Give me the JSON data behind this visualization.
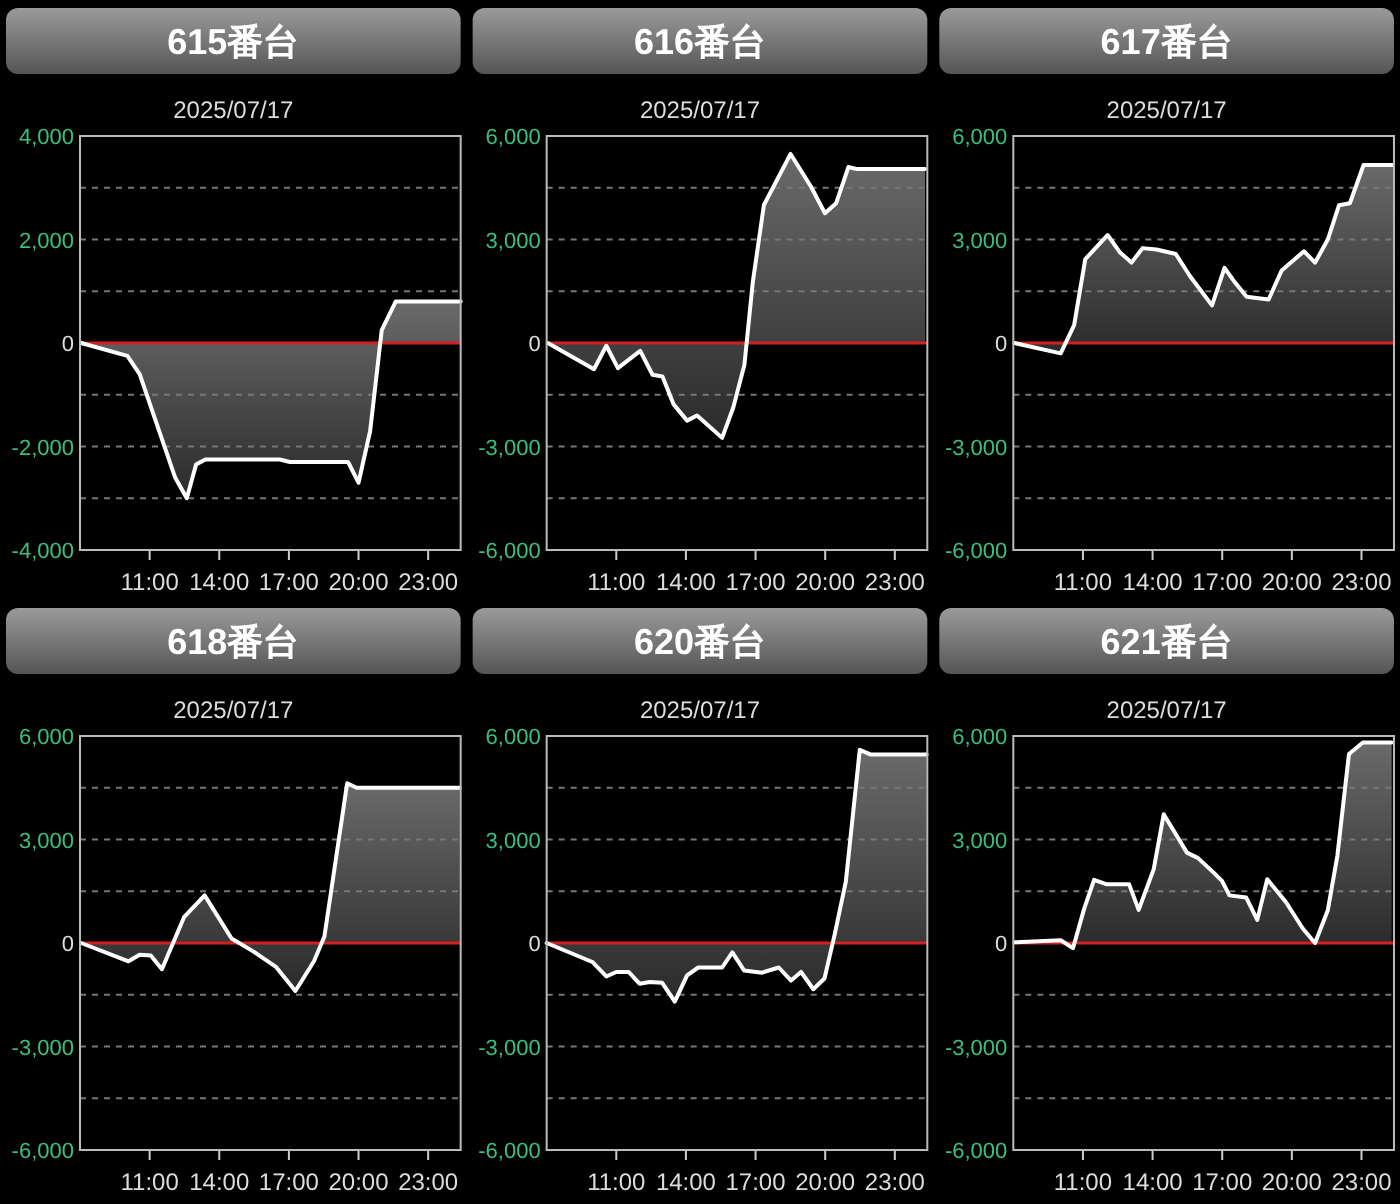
{
  "chart_data": [
    {
      "type": "area",
      "title": "615番台",
      "subtitle": "2025/07/17",
      "color": "#ffffff",
      "grid": "y",
      "xlim": [
        8,
        24.4
      ],
      "ylim": [
        -4000,
        4000
      ],
      "xticks": [
        {
          "value": 11,
          "label": "11:00"
        },
        {
          "value": 14,
          "label": "14:00"
        },
        {
          "value": 17,
          "label": "17:00"
        },
        {
          "value": 20,
          "label": "20:00"
        },
        {
          "value": 23,
          "label": "23:00"
        }
      ],
      "yticks": [
        {
          "value": -4000,
          "label": "-4,000"
        },
        {
          "value": -3000,
          "label": null
        },
        {
          "value": -2000,
          "label": "-2,000"
        },
        {
          "value": -1000,
          "label": null
        },
        {
          "value": 0,
          "label": "0"
        },
        {
          "value": 1000,
          "label": null
        },
        {
          "value": 2000,
          "label": "2,000"
        },
        {
          "value": 3000,
          "label": null
        },
        {
          "value": 4000,
          "label": "4,000"
        }
      ],
      "ref_lines": [
        {
          "axis": "y",
          "value": 0,
          "color": "#d42020"
        }
      ],
      "x": [
        8.05,
        10.04,
        10.57,
        12.1,
        12.6,
        13.0,
        13.4,
        16.6,
        17.05,
        19.55,
        20.0,
        20.5,
        21.0,
        21.6,
        24.4
      ],
      "values": [
        0,
        -250,
        -600,
        -2600,
        -3000,
        -2350,
        -2250,
        -2250,
        -2300,
        -2300,
        -2700,
        -1700,
        250,
        800,
        800
      ]
    },
    {
      "type": "area",
      "title": "616番台",
      "subtitle": "2025/07/17",
      "color": "#ffffff",
      "grid": "y",
      "xlim": [
        8,
        24.4
      ],
      "ylim": [
        -6000,
        6000
      ],
      "xticks": [
        {
          "value": 11,
          "label": "11:00"
        },
        {
          "value": 14,
          "label": "14:00"
        },
        {
          "value": 17,
          "label": "17:00"
        },
        {
          "value": 20,
          "label": "20:00"
        },
        {
          "value": 23,
          "label": "23:00"
        }
      ],
      "yticks": [
        {
          "value": -6000,
          "label": "-6,000"
        },
        {
          "value": -4500,
          "label": null
        },
        {
          "value": -3000,
          "label": "-3,000"
        },
        {
          "value": -1500,
          "label": null
        },
        {
          "value": 0,
          "label": "0"
        },
        {
          "value": 1500,
          "label": null
        },
        {
          "value": 3000,
          "label": "3,000"
        },
        {
          "value": 4500,
          "label": null
        },
        {
          "value": 6000,
          "label": "6,000"
        }
      ],
      "ref_lines": [
        {
          "axis": "y",
          "value": 0,
          "color": "#d42020"
        }
      ],
      "x": [
        8.05,
        10.04,
        10.57,
        11.07,
        12.03,
        12.56,
        12.99,
        13.47,
        14.05,
        14.48,
        15.56,
        16.04,
        16.52,
        16.88,
        17.36,
        18.51,
        19.39,
        19.99,
        20.47,
        21.0,
        21.38,
        24.3
      ],
      "values": [
        0,
        -760,
        -80,
        -730,
        -230,
        -920,
        -970,
        -1780,
        -2250,
        -2100,
        -2750,
        -1870,
        -630,
        1760,
        4000,
        5480,
        4530,
        3760,
        4050,
        5100,
        5040,
        5040
      ]
    },
    {
      "type": "area",
      "title": "617番台",
      "subtitle": "2025/07/17",
      "color": "#ffffff",
      "grid": "y",
      "xlim": [
        8,
        24.4
      ],
      "ylim": [
        -6000,
        6000
      ],
      "xticks": [
        {
          "value": 11,
          "label": "11:00"
        },
        {
          "value": 14,
          "label": "14:00"
        },
        {
          "value": 17,
          "label": "17:00"
        },
        {
          "value": 20,
          "label": "20:00"
        },
        {
          "value": 23,
          "label": "23:00"
        }
      ],
      "yticks": [
        {
          "value": -6000,
          "label": "-6,000"
        },
        {
          "value": -4500,
          "label": null
        },
        {
          "value": -3000,
          "label": "-3,000"
        },
        {
          "value": -1500,
          "label": null
        },
        {
          "value": 0,
          "label": "0"
        },
        {
          "value": 1500,
          "label": null
        },
        {
          "value": 3000,
          "label": "3,000"
        },
        {
          "value": 4500,
          "label": null
        },
        {
          "value": 6000,
          "label": "6,000"
        }
      ],
      "ref_lines": [
        {
          "axis": "y",
          "value": 0,
          "color": "#d42020"
        }
      ],
      "x": [
        8.05,
        10.04,
        10.62,
        11.1,
        12.06,
        12.6,
        13.09,
        13.57,
        14.17,
        15.0,
        15.6,
        16.56,
        17.1,
        17.5,
        18.05,
        19.0,
        19.56,
        20.52,
        21.0,
        21.55,
        22.03,
        22.5,
        23.09,
        24.36
      ],
      "values": [
        0,
        -300,
        520,
        2430,
        3130,
        2620,
        2330,
        2750,
        2710,
        2580,
        1950,
        1090,
        2180,
        1800,
        1340,
        1260,
        2100,
        2660,
        2330,
        3000,
        3990,
        4050,
        5160,
        5160
      ]
    },
    {
      "type": "area",
      "title": "618番台",
      "subtitle": "2025/07/17",
      "color": "#ffffff",
      "grid": "y",
      "xlim": [
        8,
        24.4
      ],
      "ylim": [
        -6000,
        6000
      ],
      "xticks": [
        {
          "value": 11,
          "label": "11:00"
        },
        {
          "value": 14,
          "label": "14:00"
        },
        {
          "value": 17,
          "label": "17:00"
        },
        {
          "value": 20,
          "label": "20:00"
        },
        {
          "value": 23,
          "label": "23:00"
        }
      ],
      "yticks": [
        {
          "value": -6000,
          "label": "-6,000"
        },
        {
          "value": -4500,
          "label": null
        },
        {
          "value": -3000,
          "label": "-3,000"
        },
        {
          "value": -1500,
          "label": null
        },
        {
          "value": 0,
          "label": "0"
        },
        {
          "value": 1500,
          "label": null
        },
        {
          "value": 3000,
          "label": "3,000"
        },
        {
          "value": 4500,
          "label": null
        },
        {
          "value": 6000,
          "label": "6,000"
        }
      ],
      "ref_lines": [
        {
          "axis": "y",
          "value": 0,
          "color": "#d42020"
        }
      ],
      "x": [
        8.05,
        10.09,
        10.57,
        11.05,
        11.53,
        12.49,
        13.37,
        14.53,
        15.48,
        16.44,
        17.28,
        18.08,
        18.53,
        19.51,
        19.92,
        24.36
      ],
      "values": [
        0,
        -530,
        -340,
        -360,
        -760,
        760,
        1380,
        130,
        -250,
        -690,
        -1390,
        -530,
        190,
        4630,
        4500,
        4500
      ]
    },
    {
      "type": "area",
      "title": "620番台",
      "subtitle": "2025/07/17",
      "color": "#ffffff",
      "grid": "y",
      "xlim": [
        8,
        24.4
      ],
      "ylim": [
        -6000,
        6000
      ],
      "xticks": [
        {
          "value": 11,
          "label": "11:00"
        },
        {
          "value": 14,
          "label": "14:00"
        },
        {
          "value": 17,
          "label": "17:00"
        },
        {
          "value": 20,
          "label": "20:00"
        },
        {
          "value": 23,
          "label": "23:00"
        }
      ],
      "yticks": [
        {
          "value": -6000,
          "label": "-6,000"
        },
        {
          "value": -4500,
          "label": null
        },
        {
          "value": -3000,
          "label": "-3,000"
        },
        {
          "value": -1500,
          "label": null
        },
        {
          "value": 0,
          "label": "0"
        },
        {
          "value": 1500,
          "label": null
        },
        {
          "value": 3000,
          "label": "3,000"
        },
        {
          "value": 4500,
          "label": null
        },
        {
          "value": 6000,
          "label": "6,000"
        }
      ],
      "ref_lines": [
        {
          "axis": "y",
          "value": 0,
          "color": "#d42020"
        }
      ],
      "x": [
        8.0,
        9.97,
        10.57,
        11.0,
        11.53,
        12.0,
        12.44,
        12.97,
        13.52,
        14.05,
        14.53,
        15.56,
        16.0,
        16.51,
        17.28,
        18.0,
        18.53,
        18.96,
        19.49,
        19.97,
        20.41,
        20.89,
        21.49,
        21.97,
        24.37
      ],
      "values": [
        0,
        -550,
        -970,
        -840,
        -840,
        -1180,
        -1130,
        -1150,
        -1700,
        -940,
        -710,
        -710,
        -270,
        -800,
        -860,
        -710,
        -1090,
        -840,
        -1340,
        -1030,
        250,
        1780,
        5600,
        5460,
        5460
      ]
    },
    {
      "type": "area",
      "title": "621番台",
      "subtitle": "2025/07/17",
      "color": "#ffffff",
      "grid": "y",
      "xlim": [
        8,
        24.4
      ],
      "ylim": [
        -6000,
        6000
      ],
      "xticks": [
        {
          "value": 11,
          "label": "11:00"
        },
        {
          "value": 14,
          "label": "14:00"
        },
        {
          "value": 17,
          "label": "17:00"
        },
        {
          "value": 20,
          "label": "20:00"
        },
        {
          "value": 23,
          "label": "23:00"
        }
      ],
      "yticks": [
        {
          "value": -6000,
          "label": "-6,000"
        },
        {
          "value": -4500,
          "label": null
        },
        {
          "value": -3000,
          "label": "-3,000"
        },
        {
          "value": -1500,
          "label": null
        },
        {
          "value": 0,
          "label": "0"
        },
        {
          "value": 1500,
          "label": null
        },
        {
          "value": 3000,
          "label": "3,000"
        },
        {
          "value": 4500,
          "label": null
        },
        {
          "value": 6000,
          "label": "6,000"
        }
      ],
      "ref_lines": [
        {
          "axis": "y",
          "value": 0,
          "color": "#d42020"
        }
      ],
      "x": [
        8.05,
        10.04,
        10.57,
        11.05,
        11.48,
        12.03,
        12.99,
        13.4,
        14.05,
        14.48,
        15.48,
        15.96,
        16.63,
        16.99,
        17.31,
        18.03,
        18.51,
        18.94,
        19.75,
        20.47,
        21.0,
        21.55,
        21.96,
        22.46,
        23.06,
        24.3
      ],
      "values": [
        20,
        80,
        -150,
        990,
        1830,
        1700,
        1700,
        960,
        2140,
        3730,
        2620,
        2460,
        2040,
        1800,
        1380,
        1320,
        670,
        1850,
        1180,
        420,
        0,
        950,
        2520,
        5480,
        5810,
        5810
      ]
    }
  ]
}
